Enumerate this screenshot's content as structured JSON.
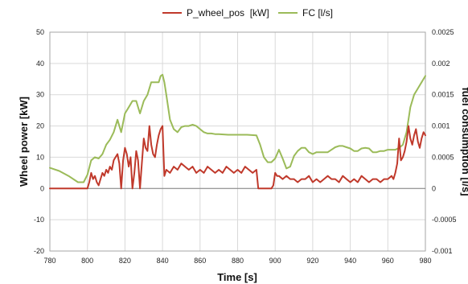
{
  "chart_data": {
    "type": "line",
    "xlabel": "Time [s]",
    "ylabel": "Wheel power [kW]",
    "y2label": "fuel consumption [l/s]",
    "xlim": [
      780,
      980
    ],
    "ylim": [
      -20,
      50
    ],
    "y2lim": [
      -0.001,
      0.0025
    ],
    "xticks": [
      "780",
      "800",
      "820",
      "840",
      "860",
      "880",
      "900",
      "920",
      "940",
      "960",
      "980"
    ],
    "yticks": [
      "-20",
      "-10",
      "0",
      "10",
      "20",
      "30",
      "40",
      "50"
    ],
    "y2ticks": [
      "-0.001",
      "-0.0005",
      "0",
      "0.0005",
      "0.001",
      "0.0015",
      "0.002",
      "0.0025"
    ],
    "grid": true,
    "legend_position": "top-center",
    "series": [
      {
        "name": "P_wheel_pos  [kW]",
        "axis": "left",
        "color": "#c0392b",
        "x": [
          780,
          790,
          800,
          801,
          802,
          803,
          804,
          805,
          806,
          807,
          808,
          809,
          810,
          811,
          812,
          813,
          814,
          815,
          816,
          817,
          818,
          819,
          820,
          821,
          822,
          823,
          824,
          825,
          826,
          827,
          828,
          829,
          830,
          831,
          832,
          833,
          834,
          835,
          836,
          837,
          838,
          839,
          840,
          841,
          842,
          844,
          846,
          848,
          850,
          852,
          854,
          856,
          858,
          860,
          862,
          864,
          866,
          868,
          870,
          872,
          874,
          876,
          878,
          880,
          882,
          884,
          886,
          888,
          890,
          891,
          892,
          893,
          894,
          896,
          898,
          899,
          900,
          901,
          902,
          904,
          906,
          908,
          910,
          912,
          914,
          916,
          918,
          920,
          922,
          924,
          926,
          928,
          930,
          932,
          934,
          936,
          938,
          940,
          942,
          944,
          946,
          948,
          950,
          952,
          954,
          956,
          958,
          960,
          962,
          963,
          964,
          965,
          966,
          967,
          968,
          969,
          970,
          971,
          972,
          973,
          974,
          975,
          976,
          977,
          978,
          979,
          980
        ],
        "values": [
          0,
          0,
          0,
          2,
          5,
          3,
          4,
          2,
          1,
          3,
          5,
          4,
          6,
          5,
          7,
          6,
          9,
          10,
          11,
          8,
          0,
          9,
          13,
          11,
          7,
          10,
          0,
          5,
          12,
          9,
          0,
          8,
          16,
          13,
          12,
          20,
          14,
          11,
          10,
          14,
          17,
          19,
          20,
          4,
          6,
          5,
          7,
          6,
          8,
          7,
          6,
          7,
          5,
          6,
          5,
          7,
          6,
          5,
          6,
          5,
          7,
          6,
          5,
          6,
          5,
          7,
          6,
          5,
          6,
          0,
          0,
          0,
          0,
          0,
          0,
          1,
          5,
          4,
          4,
          3,
          4,
          3,
          3,
          2,
          3,
          3,
          4,
          2,
          3,
          2,
          3,
          4,
          3,
          3,
          2,
          4,
          3,
          2,
          3,
          2,
          4,
          3,
          2,
          3,
          3,
          2,
          3,
          3,
          4,
          3,
          5,
          8,
          16,
          9,
          10,
          12,
          15,
          20,
          16,
          14,
          17,
          19,
          15,
          13,
          16,
          18,
          17
        ]
      },
      {
        "name": "FC [l/s]",
        "axis": "right",
        "color": "#9bbb59",
        "x": [
          780,
          785,
          790,
          795,
          798,
          800,
          802,
          804,
          806,
          808,
          810,
          812,
          814,
          816,
          818,
          820,
          822,
          824,
          826,
          828,
          830,
          832,
          834,
          836,
          838,
          839,
          840,
          841,
          842,
          844,
          846,
          848,
          850,
          852,
          854,
          856,
          858,
          860,
          862,
          864,
          866,
          868,
          870,
          875,
          880,
          885,
          890,
          892,
          894,
          896,
          898,
          900,
          902,
          904,
          906,
          908,
          910,
          912,
          914,
          916,
          918,
          920,
          922,
          924,
          926,
          928,
          930,
          932,
          934,
          936,
          938,
          940,
          942,
          944,
          946,
          948,
          950,
          952,
          954,
          956,
          958,
          960,
          962,
          964,
          966,
          968,
          970,
          972,
          974,
          976,
          978,
          980
        ],
        "values": [
          0.00033,
          0.00028,
          0.0002,
          0.0001,
          0.0001,
          0.00022,
          0.00045,
          0.0005,
          0.00048,
          0.00055,
          0.0007,
          0.00078,
          0.0009,
          0.0011,
          0.0009,
          0.0012,
          0.0013,
          0.0014,
          0.0014,
          0.0012,
          0.0014,
          0.0015,
          0.0017,
          0.0017,
          0.0017,
          0.0018,
          0.00182,
          0.0017,
          0.0015,
          0.0011,
          0.00095,
          0.0009,
          0.00098,
          0.001,
          0.001,
          0.00102,
          0.001,
          0.00095,
          0.0009,
          0.00088,
          0.00088,
          0.00087,
          0.00087,
          0.00086,
          0.00086,
          0.00086,
          0.00085,
          0.0007,
          0.0005,
          0.00042,
          0.00042,
          0.00048,
          0.00062,
          0.00048,
          0.00032,
          0.00035,
          0.00052,
          0.0006,
          0.00065,
          0.00065,
          0.00058,
          0.00055,
          0.00058,
          0.00058,
          0.00058,
          0.00058,
          0.00062,
          0.00066,
          0.00068,
          0.00068,
          0.00066,
          0.00064,
          0.0006,
          0.0006,
          0.00064,
          0.00065,
          0.00064,
          0.00058,
          0.00058,
          0.0006,
          0.0006,
          0.00062,
          0.00062,
          0.00062,
          0.00065,
          0.0007,
          0.0009,
          0.0013,
          0.0015,
          0.0016,
          0.0017,
          0.0018
        ]
      }
    ]
  }
}
